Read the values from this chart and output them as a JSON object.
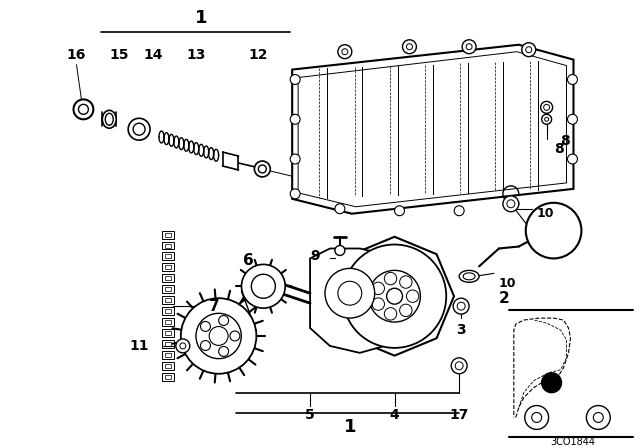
{
  "background_color": "#ffffff",
  "line_color": "#000000",
  "fig_w": 6.4,
  "fig_h": 4.48,
  "dpi": 100
}
